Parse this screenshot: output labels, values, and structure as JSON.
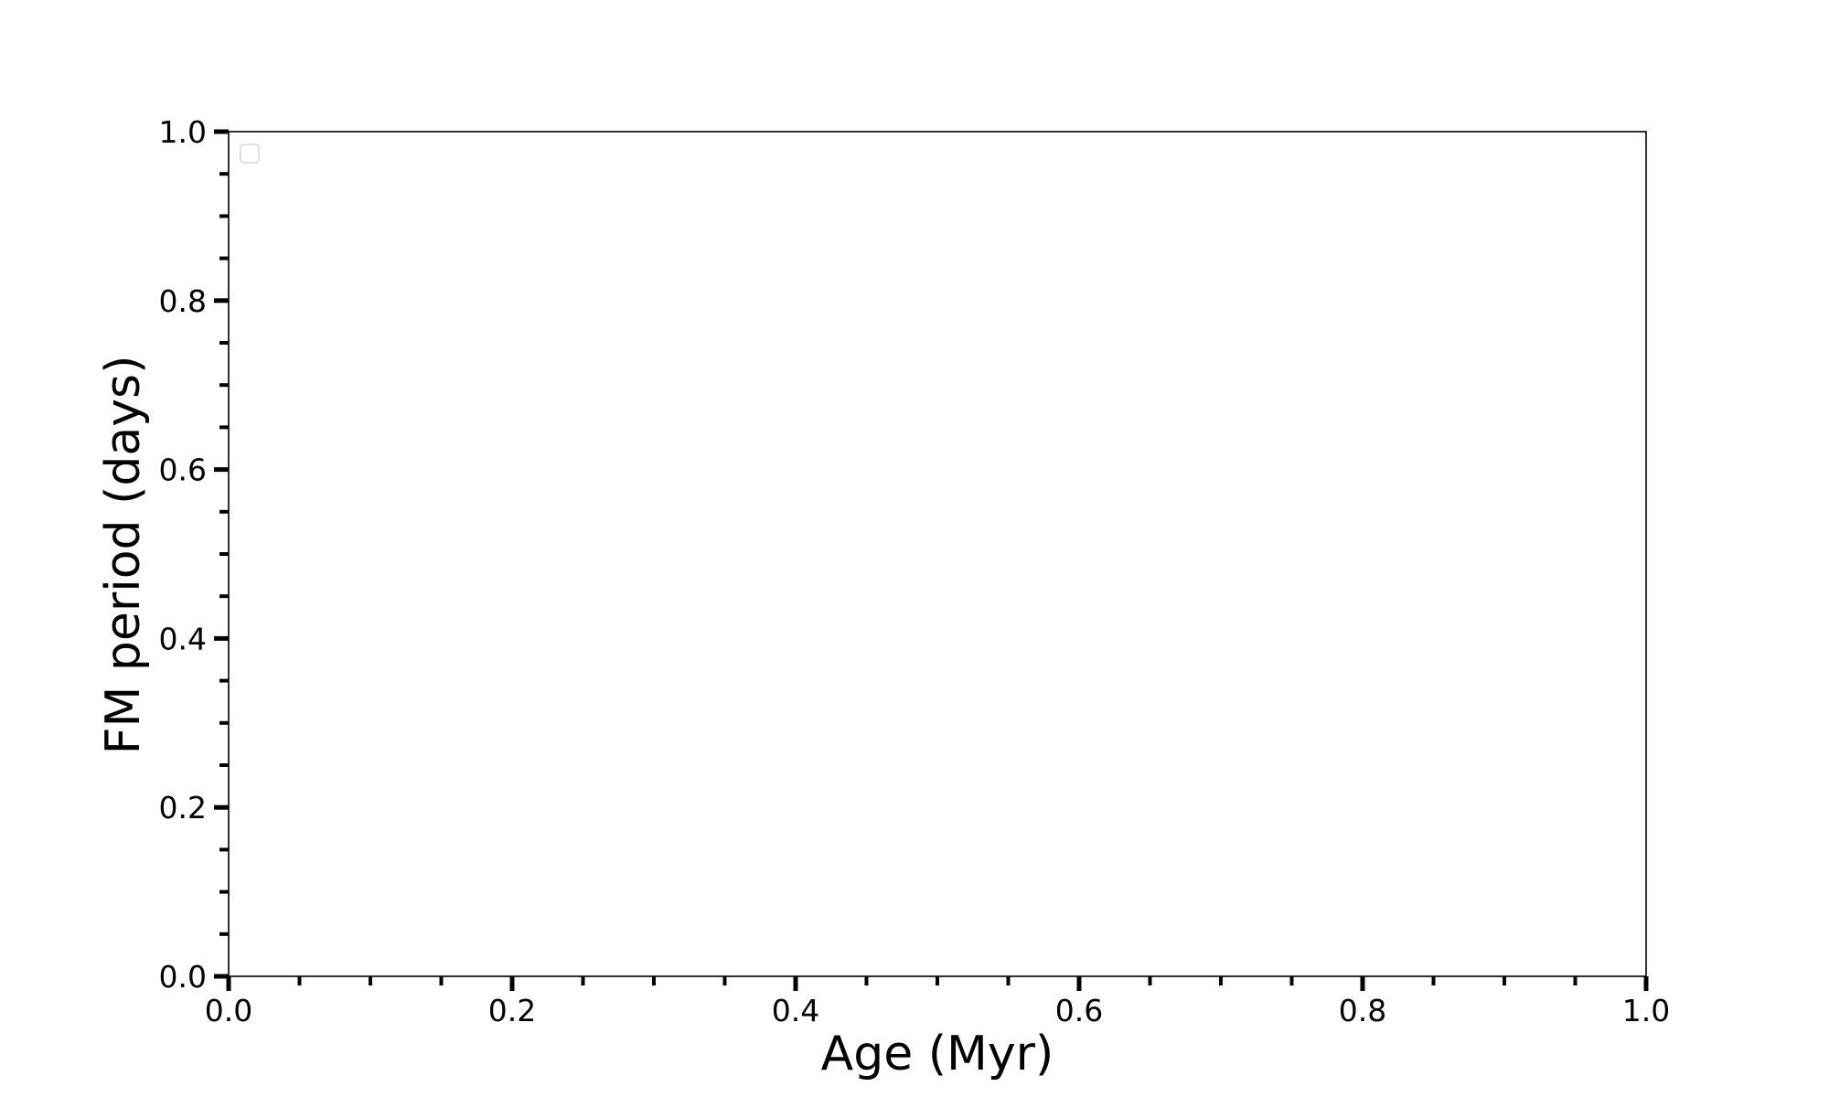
{
  "chart_data": {
    "type": "scatter",
    "title": "",
    "xlabel": "Age (Myr)",
    "ylabel": "FM period (days)",
    "xlim": [
      0.0,
      1.0
    ],
    "ylim": [
      0.0,
      1.0
    ],
    "x_ticks": [
      "0.0",
      "0.2",
      "0.4",
      "0.6",
      "0.8",
      "1.0"
    ],
    "y_ticks": [
      "0.0",
      "0.2",
      "0.4",
      "0.6",
      "0.8",
      "1.0"
    ],
    "minor_tick_step": 0.05,
    "grid": false,
    "legend": {
      "placement": "upper-left",
      "entries": []
    },
    "series": []
  }
}
